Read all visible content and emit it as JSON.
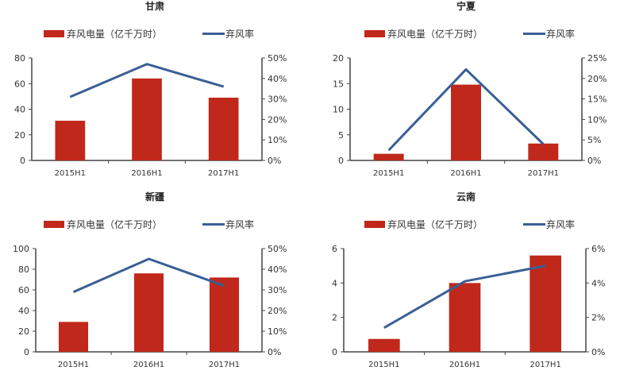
{
  "colors": {
    "bar": "#C0281B",
    "line": "#3A5F95",
    "axis": "#444444"
  },
  "chart_data": [
    {
      "type": "bar+line",
      "title": "甘肃",
      "categories": [
        "2015H1",
        "2016H1",
        "2017H1"
      ],
      "series": [
        {
          "name": "弃风电量（亿千万时）",
          "type": "bar",
          "axis": "left",
          "values": [
            31,
            64,
            49
          ]
        },
        {
          "name": "弃风率",
          "type": "line",
          "axis": "right",
          "values": [
            0.31,
            0.47,
            0.36
          ]
        }
      ],
      "ylim": [
        0,
        80
      ],
      "yticks": [
        "0",
        "20",
        "40",
        "60",
        "80"
      ],
      "y2lim": [
        0,
        0.5
      ],
      "y2ticks": [
        "0%",
        "10%",
        "20%",
        "30%",
        "40%",
        "50%"
      ],
      "legend": "top"
    },
    {
      "type": "bar+line",
      "title": "宁夏",
      "categories": [
        "2015H1",
        "2016H1",
        "2017H1"
      ],
      "series": [
        {
          "name": "弃风电量（亿千万时）",
          "type": "bar",
          "axis": "left",
          "values": [
            1.3,
            14.8,
            3.3
          ]
        },
        {
          "name": "弃风率",
          "type": "line",
          "axis": "right",
          "values": [
            0.025,
            0.222,
            0.04
          ]
        }
      ],
      "ylim": [
        0,
        20
      ],
      "yticks": [
        "0",
        "5",
        "10",
        "15",
        "20"
      ],
      "y2lim": [
        0,
        0.25
      ],
      "y2ticks": [
        "0%",
        "5%",
        "10%",
        "15%",
        "20%",
        "25%"
      ],
      "legend": "top"
    },
    {
      "type": "bar+line",
      "title": "新疆",
      "categories": [
        "2015H1",
        "2016H1",
        "2017H1"
      ],
      "series": [
        {
          "name": "弃风电量（亿千万时）",
          "type": "bar",
          "axis": "left",
          "values": [
            29,
            76,
            72
          ]
        },
        {
          "name": "弃风率",
          "type": "line",
          "axis": "right",
          "values": [
            0.29,
            0.45,
            0.32
          ]
        }
      ],
      "ylim": [
        0,
        100
      ],
      "yticks": [
        "0",
        "20",
        "40",
        "60",
        "80",
        "100"
      ],
      "y2lim": [
        0,
        0.5
      ],
      "y2ticks": [
        "0%",
        "10%",
        "20%",
        "30%",
        "40%",
        "50%"
      ],
      "legend": "top"
    },
    {
      "type": "bar+line",
      "title": "云南",
      "categories": [
        "2015H1",
        "2016H1",
        "2017H1"
      ],
      "series": [
        {
          "name": "弃风电量（亿千万时）",
          "type": "bar",
          "axis": "left",
          "values": [
            0.75,
            4.0,
            5.6
          ]
        },
        {
          "name": "弃风率",
          "type": "line",
          "axis": "right",
          "values": [
            0.014,
            0.041,
            0.05
          ]
        }
      ],
      "ylim": [
        0,
        6
      ],
      "yticks": [
        "0",
        "2",
        "4",
        "6"
      ],
      "y2lim": [
        0,
        0.06
      ],
      "y2ticks": [
        "0%",
        "2%",
        "4%",
        "6%"
      ],
      "legend": "top"
    }
  ]
}
